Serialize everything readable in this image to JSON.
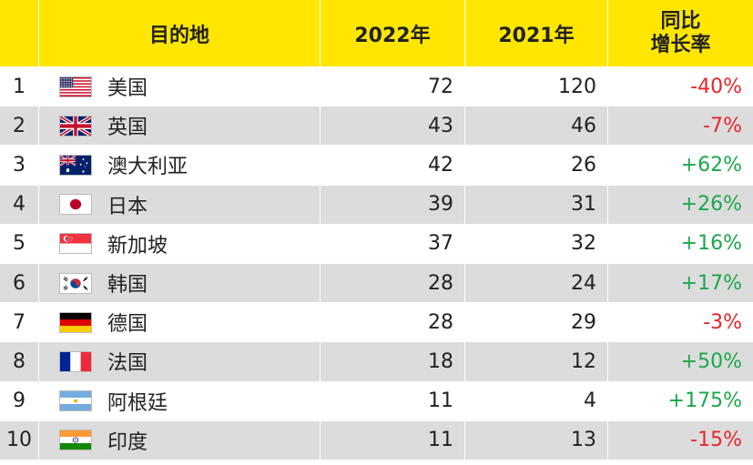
{
  "header": {
    "rank": "",
    "destination": "目的地",
    "y2022": "2022年",
    "y2021": "2021年",
    "yoy_line1": "同比",
    "yoy_line2": "增长率"
  },
  "colors": {
    "header_bg": "#ffe600",
    "row_shade": "#dcdcdc",
    "negative": "#e8252b",
    "positive": "#1aa84a"
  },
  "rows": [
    {
      "rank": "1",
      "flag": "us-flag-icon",
      "destination": "美国",
      "y2022": "72",
      "y2021": "120",
      "yoy": "-40%",
      "sign": "neg"
    },
    {
      "rank": "2",
      "flag": "uk-flag-icon",
      "destination": "英国",
      "y2022": "43",
      "y2021": "46",
      "yoy": "-7%",
      "sign": "neg"
    },
    {
      "rank": "3",
      "flag": "australia-flag-icon",
      "destination": "澳大利亚",
      "y2022": "42",
      "y2021": "26",
      "yoy": "+62%",
      "sign": "pos"
    },
    {
      "rank": "4",
      "flag": "japan-flag-icon",
      "destination": "日本",
      "y2022": "39",
      "y2021": "31",
      "yoy": "+26%",
      "sign": "pos"
    },
    {
      "rank": "5",
      "flag": "singapore-flag-icon",
      "destination": "新加坡",
      "y2022": "37",
      "y2021": "32",
      "yoy": "+16%",
      "sign": "pos"
    },
    {
      "rank": "6",
      "flag": "korea-flag-icon",
      "destination": "韩国",
      "y2022": "28",
      "y2021": "24",
      "yoy": "+17%",
      "sign": "pos"
    },
    {
      "rank": "7",
      "flag": "germany-flag-icon",
      "destination": "德国",
      "y2022": "28",
      "y2021": "29",
      "yoy": "-3%",
      "sign": "neg"
    },
    {
      "rank": "8",
      "flag": "france-flag-icon",
      "destination": "法国",
      "y2022": "18",
      "y2021": "12",
      "yoy": "+50%",
      "sign": "pos"
    },
    {
      "rank": "9",
      "flag": "argentina-flag-icon",
      "destination": "阿根廷",
      "y2022": "11",
      "y2021": "4",
      "yoy": "+175%",
      "sign": "pos"
    },
    {
      "rank": "10",
      "flag": "india-flag-icon",
      "destination": "印度",
      "y2022": "11",
      "y2021": "13",
      "yoy": "-15%",
      "sign": "neg"
    }
  ]
}
